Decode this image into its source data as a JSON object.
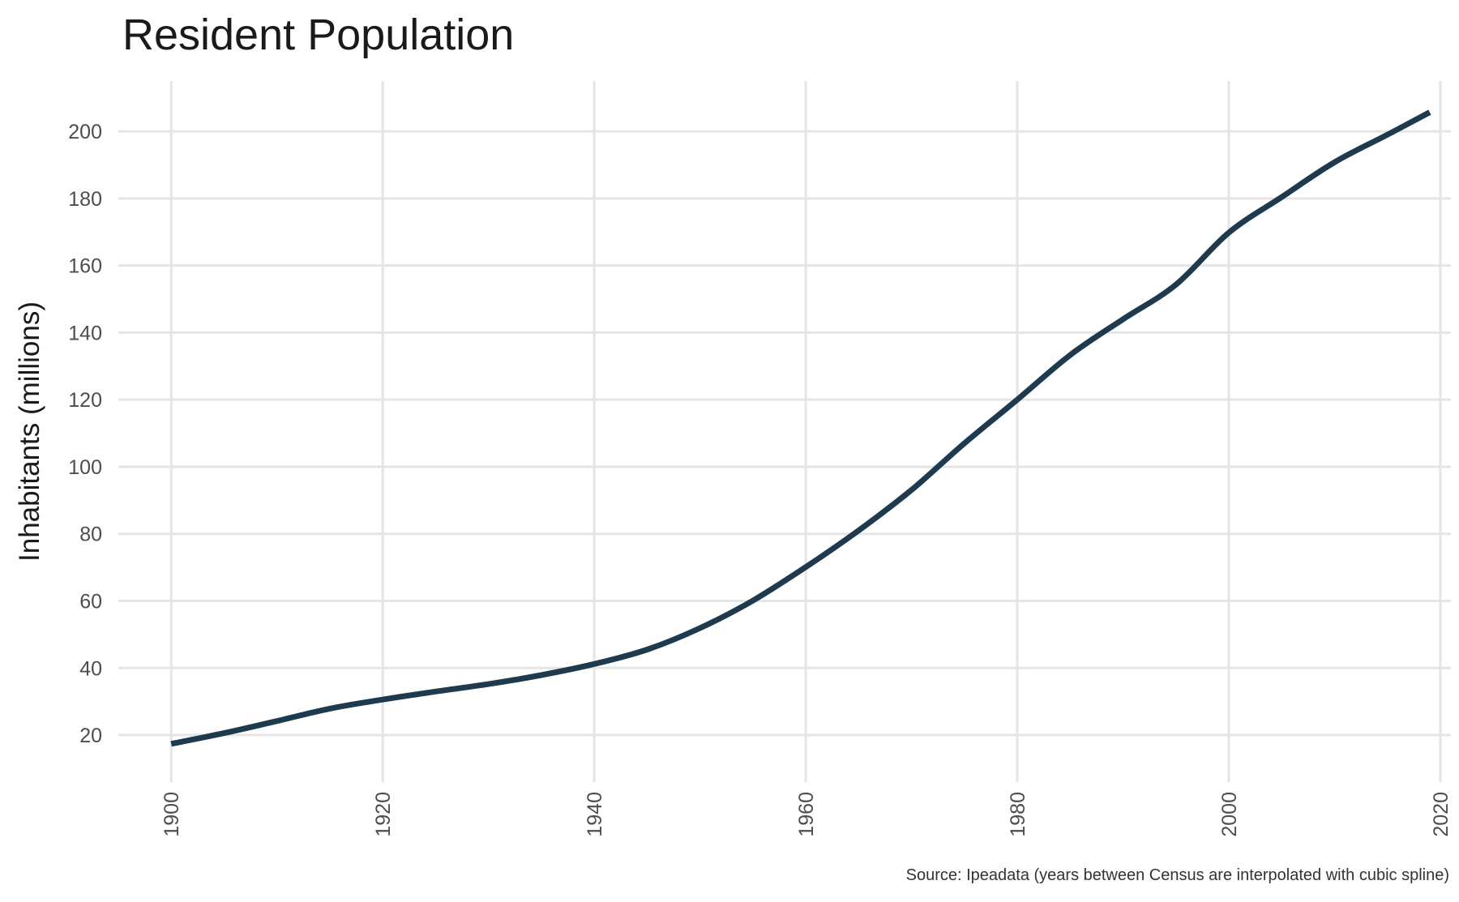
{
  "chart_data": {
    "type": "line",
    "title": "Resident Population",
    "xlabel": "",
    "ylabel": "Inhabitants (millions)",
    "caption": "Source: Ipeadata (years between Census are interpolated with cubic spline)",
    "xlim": [
      1895,
      2021
    ],
    "ylim": [
      6,
      215
    ],
    "x_ticks": [
      1900,
      1920,
      1940,
      1960,
      1980,
      2000,
      2020
    ],
    "x_tick_labels": [
      "1900",
      "1920",
      "1940",
      "1960",
      "1980",
      "2000",
      "2020"
    ],
    "y_ticks": [
      20,
      40,
      60,
      80,
      100,
      120,
      140,
      160,
      180,
      200
    ],
    "y_tick_labels": [
      "20",
      "40",
      "60",
      "80",
      "100",
      "120",
      "140",
      "160",
      "180",
      "200"
    ],
    "grid": true,
    "legend": "none",
    "line_color": "#1d3a4f",
    "series": [
      {
        "x": [
          1900,
          1905,
          1910,
          1915,
          1920,
          1925,
          1930,
          1935,
          1940,
          1945,
          1950,
          1955,
          1960,
          1965,
          1970,
          1975,
          1980,
          1985,
          1990,
          1995,
          2000,
          2005,
          2010,
          2015,
          2019
        ],
        "values": [
          17.4,
          20.6,
          24.2,
          27.9,
          30.6,
          33.0,
          35.2,
          37.9,
          41.2,
          45.5,
          51.9,
          60.1,
          70.1,
          81.0,
          93.1,
          107.0,
          120.0,
          133.3,
          144.0,
          154.3,
          169.8,
          180.4,
          190.8,
          199.0,
          205.7
        ]
      }
    ]
  }
}
